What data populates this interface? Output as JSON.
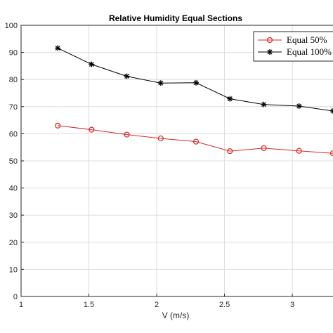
{
  "chart_data": {
    "type": "line",
    "title": "Relative Humidity Equal Sections",
    "xlabel": "V (m/s)",
    "ylabel": "",
    "xlim": [
      1,
      3.3
    ],
    "ylim": [
      0,
      100
    ],
    "xticks": [
      1,
      1.5,
      2,
      2.5,
      3
    ],
    "xtick_labels": [
      "1",
      "1.5",
      "2",
      "2.5",
      "3"
    ],
    "yticks": [
      0,
      10,
      20,
      30,
      40,
      50,
      60,
      70,
      80,
      90,
      100
    ],
    "ytick_labels": [
      "0",
      "10",
      "20",
      "30",
      "40",
      "50",
      "60",
      "70",
      "80",
      "90",
      "100"
    ],
    "grid": true,
    "legend_position": "top-right",
    "series": [
      {
        "name": "Equal 50%",
        "color": "#d62728",
        "marker": "circle",
        "x": [
          1.27,
          1.52,
          1.78,
          2.03,
          2.29,
          2.54,
          2.79,
          3.05,
          3.3
        ],
        "y": [
          63.0,
          61.5,
          59.7,
          58.3,
          57.1,
          53.6,
          54.7,
          53.7,
          52.8
        ]
      },
      {
        "name": "Equal 100%",
        "color": "#000000",
        "marker": "asterisk",
        "x": [
          1.27,
          1.52,
          1.78,
          2.03,
          2.29,
          2.54,
          2.79,
          3.05,
          3.3
        ],
        "y": [
          91.6,
          85.6,
          81.2,
          78.7,
          78.8,
          72.9,
          70.8,
          70.2,
          68.4
        ]
      }
    ]
  }
}
